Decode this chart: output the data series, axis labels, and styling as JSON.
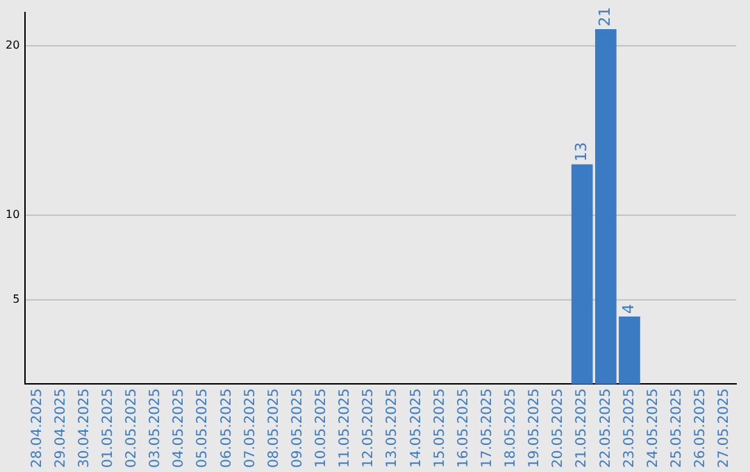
{
  "chart_data": {
    "type": "bar",
    "categories": [
      "28.04.2025",
      "29.04.2025",
      "30.04.2025",
      "01.05.2025",
      "02.05.2025",
      "03.05.2025",
      "04.05.2025",
      "05.05.2025",
      "06.05.2025",
      "07.05.2025",
      "08.05.2025",
      "09.05.2025",
      "10.05.2025",
      "11.05.2025",
      "12.05.2025",
      "13.05.2025",
      "14.05.2025",
      "15.05.2025",
      "16.05.2025",
      "17.05.2025",
      "18.05.2025",
      "19.05.2025",
      "20.05.2025",
      "21.05.2025",
      "22.05.2025",
      "23.05.2025",
      "24.05.2025",
      "25.05.2025",
      "26.05.2025",
      "27.05.2025"
    ],
    "values": [
      0,
      0,
      0,
      0,
      0,
      0,
      0,
      0,
      0,
      0,
      0,
      0,
      0,
      0,
      0,
      0,
      0,
      0,
      0,
      0,
      0,
      0,
      0,
      13,
      21,
      4,
      0,
      0,
      0,
      0
    ],
    "value_labels": [
      null,
      null,
      null,
      null,
      null,
      null,
      null,
      null,
      null,
      null,
      null,
      null,
      null,
      null,
      null,
      null,
      null,
      null,
      null,
      null,
      null,
      null,
      null,
      "13",
      "21",
      "4",
      null,
      null,
      null,
      null
    ],
    "color": "#3b7bc4",
    "ylim": [
      0,
      22
    ],
    "yticks": [
      5,
      10,
      20
    ],
    "grid": "y",
    "legend": false
  }
}
